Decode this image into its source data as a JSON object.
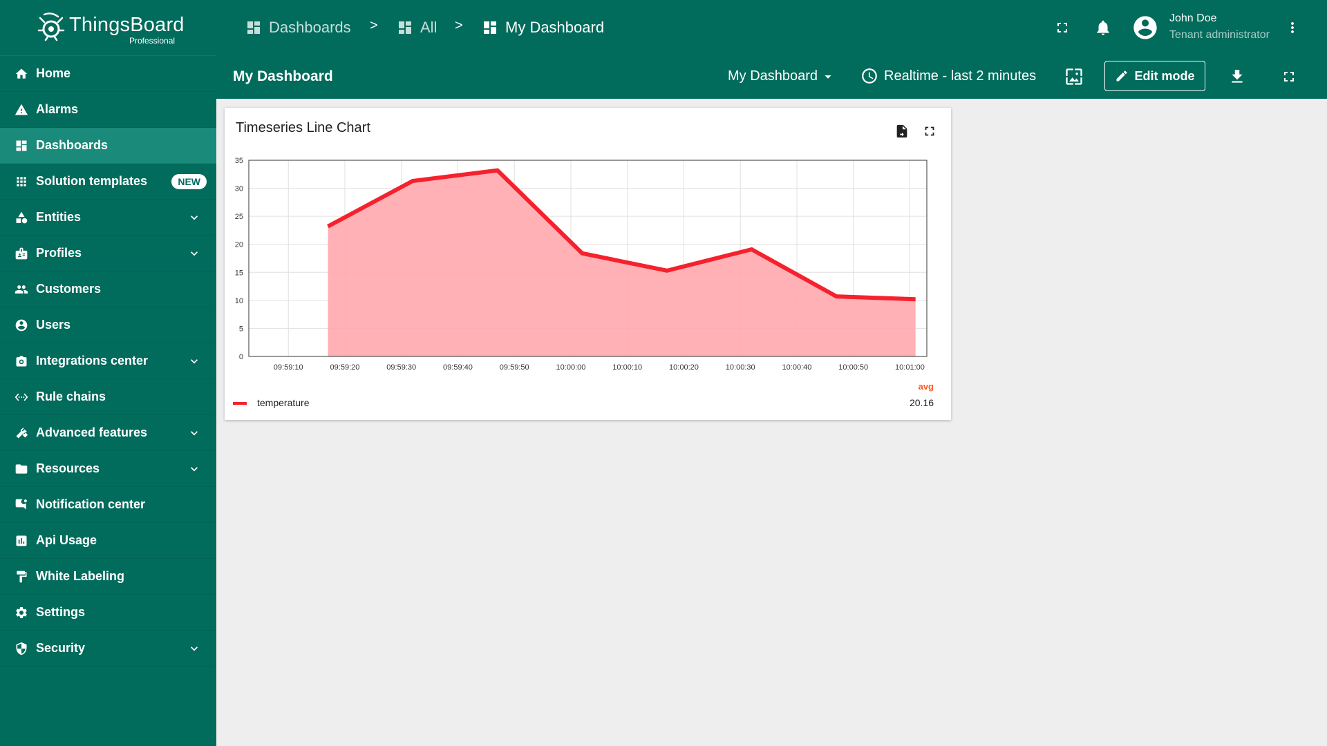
{
  "brand": {
    "name": "ThingsBoard",
    "sub": "Professional"
  },
  "sidebar": {
    "items": [
      {
        "label": "Home",
        "icon": "home-icon",
        "expandable": false,
        "active": false
      },
      {
        "label": "Alarms",
        "icon": "warning-icon",
        "expandable": false,
        "active": false
      },
      {
        "label": "Dashboards",
        "icon": "dashboard-icon",
        "expandable": false,
        "active": true
      },
      {
        "label": "Solution templates",
        "icon": "apps-icon",
        "expandable": false,
        "active": false,
        "badge": "NEW"
      },
      {
        "label": "Entities",
        "icon": "category-icon",
        "expandable": true,
        "active": false
      },
      {
        "label": "Profiles",
        "icon": "badge-icon",
        "expandable": true,
        "active": false
      },
      {
        "label": "Customers",
        "icon": "people-icon",
        "expandable": false,
        "active": false
      },
      {
        "label": "Users",
        "icon": "account-circle-icon",
        "expandable": false,
        "active": false
      },
      {
        "label": "Integrations center",
        "icon": "integration-icon",
        "expandable": true,
        "active": false
      },
      {
        "label": "Rule chains",
        "icon": "settings-ethernet-icon",
        "expandable": false,
        "active": false
      },
      {
        "label": "Advanced features",
        "icon": "construction-icon",
        "expandable": true,
        "active": false
      },
      {
        "label": "Resources",
        "icon": "folder-icon",
        "expandable": true,
        "active": false
      },
      {
        "label": "Notification center",
        "icon": "mark-chat-icon",
        "expandable": false,
        "active": false
      },
      {
        "label": "Api Usage",
        "icon": "insert-chart-icon",
        "expandable": false,
        "active": false
      },
      {
        "label": "White Labeling",
        "icon": "format-paint-icon",
        "expandable": false,
        "active": false
      },
      {
        "label": "Settings",
        "icon": "gear-icon",
        "expandable": false,
        "active": false
      },
      {
        "label": "Security",
        "icon": "security-icon",
        "expandable": true,
        "active": false
      }
    ]
  },
  "breadcrumb": [
    {
      "label": "Dashboards",
      "current": false
    },
    {
      "label": "All",
      "current": false
    },
    {
      "label": "My Dashboard",
      "current": true
    }
  ],
  "breadcrumb_separator": ">",
  "user": {
    "name": "John Doe",
    "role": "Tenant administrator"
  },
  "toolbar": {
    "title": "My Dashboard",
    "dashboard_select": "My Dashboard",
    "timewindow": "Realtime - last 2 minutes",
    "edit_label": "Edit mode"
  },
  "widget": {
    "title": "Timeseries Line Chart",
    "legend": {
      "header": "avg",
      "series_name": "temperature",
      "avg_value": "20.16"
    }
  },
  "colors": {
    "primary": "#016b5c",
    "active_item": "#1a8a7a",
    "series_line": "#f5222d",
    "series_fill": "#ffa8ae",
    "legend_header": "#ff5722"
  },
  "chart_data": {
    "type": "area",
    "title": "Timeseries Line Chart",
    "x_ticks": [
      "09:59:10",
      "09:59:20",
      "09:59:30",
      "09:59:40",
      "09:59:50",
      "10:00:00",
      "10:00:10",
      "10:00:20",
      "10:00:30",
      "10:00:40",
      "10:00:50",
      "10:01:00"
    ],
    "y_ticks": [
      0,
      5,
      10,
      15,
      20,
      25,
      30,
      35
    ],
    "ylim": [
      0,
      35
    ],
    "xlim": [
      "09:59:03",
      "10:01:03"
    ],
    "grid": true,
    "legend_position": "bottom",
    "series": [
      {
        "name": "temperature",
        "color": "#f5222d",
        "x": [
          "09:59:17",
          "09:59:32",
          "09:59:47",
          "10:00:02",
          "10:00:17",
          "10:00:32",
          "10:00:47",
          "10:01:01"
        ],
        "values": [
          23.2,
          31.3,
          33.2,
          18.4,
          15.3,
          19.1,
          10.7,
          10.2
        ]
      }
    ]
  }
}
